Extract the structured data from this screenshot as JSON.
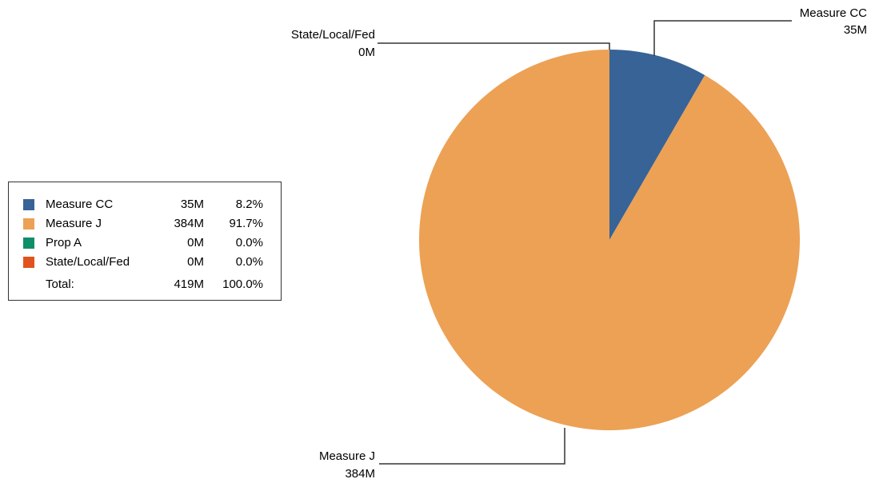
{
  "chart_data": {
    "type": "pie",
    "title": "",
    "start_angle_deg": 0,
    "direction": "clockwise",
    "colors": [
      "#386396",
      "#eca155",
      "#0f8e6a",
      "#e0531f"
    ],
    "slices": [
      {
        "label": "Measure CC",
        "value": 35,
        "display_value": "35M",
        "percent": "8.2%",
        "color": "#386396"
      },
      {
        "label": "Measure J",
        "value": 384,
        "display_value": "384M",
        "percent": "91.7%",
        "color": "#eca155"
      },
      {
        "label": "Prop A",
        "value": 0,
        "display_value": "0M",
        "percent": "0.0%",
        "color": "#0f8e6a"
      },
      {
        "label": "State/Local/Fed",
        "value": 0,
        "display_value": "0M",
        "percent": "0.0%",
        "color": "#e0531f"
      }
    ],
    "callouts": [
      {
        "label": "Measure CC",
        "value": "35M"
      },
      {
        "label": "State/Local/Fed",
        "value": "0M"
      },
      {
        "label": "Measure J",
        "value": "384M"
      }
    ],
    "legend": {
      "placement": "left",
      "total_label": "Total:",
      "total_value": "419M",
      "total_percent": "100.0%"
    }
  }
}
